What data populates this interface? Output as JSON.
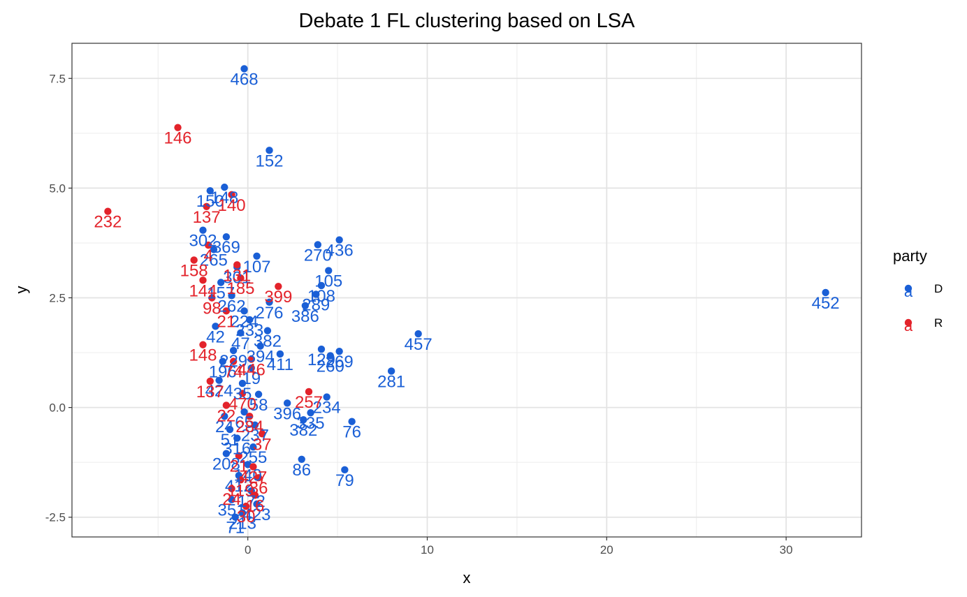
{
  "chart_data": {
    "type": "scatter",
    "title": "Debate 1 FL clustering based on LSA",
    "xlabel": "x",
    "ylabel": "y",
    "xlim": [
      -9.8,
      34.2
    ],
    "ylim": [
      -2.95,
      8.3
    ],
    "x_ticks": [
      0,
      10,
      20,
      30
    ],
    "x_tick_labels": [
      "0",
      "10",
      "20",
      "30"
    ],
    "y_ticks": [
      -2.5,
      0.0,
      2.5,
      5.0,
      7.5
    ],
    "y_tick_labels": [
      "-2.5",
      "0.0",
      "2.5",
      "5.0",
      "7.5"
    ],
    "grid": true,
    "legend": {
      "title": "party",
      "position": "right",
      "key_glyph": "a",
      "entries": [
        {
          "label": "D",
          "color": "#1a5fd6"
        },
        {
          "label": "R",
          "color": "#e3232b"
        }
      ]
    },
    "series": [
      {
        "name": "D",
        "color": "#1a5fd6",
        "points": [
          {
            "x": -0.2,
            "y": 7.72,
            "label": "468"
          },
          {
            "x": 1.2,
            "y": 5.86,
            "label": "152"
          },
          {
            "x": -2.1,
            "y": 4.94,
            "label": "150"
          },
          {
            "x": -1.3,
            "y": 5.02,
            "label": "148"
          },
          {
            "x": -2.5,
            "y": 4.04,
            "label": "302"
          },
          {
            "x": -1.2,
            "y": 3.89,
            "label": "369"
          },
          {
            "x": -1.9,
            "y": 3.6,
            "label": "265"
          },
          {
            "x": 0.5,
            "y": 3.45,
            "label": "107"
          },
          {
            "x": -0.6,
            "y": 3.2,
            "label": "301"
          },
          {
            "x": 3.9,
            "y": 3.71,
            "label": "270"
          },
          {
            "x": 5.1,
            "y": 3.82,
            "label": "436"
          },
          {
            "x": 4.5,
            "y": 3.12,
            "label": "105"
          },
          {
            "x": 4.1,
            "y": 2.78,
            "label": "108"
          },
          {
            "x": -1.5,
            "y": 2.85,
            "label": "157"
          },
          {
            "x": 3.8,
            "y": 2.58,
            "label": "289"
          },
          {
            "x": 3.2,
            "y": 2.32,
            "label": "386"
          },
          {
            "x": 1.2,
            "y": 2.4,
            "label": "276"
          },
          {
            "x": -0.2,
            "y": 2.2,
            "label": "224"
          },
          {
            "x": 32.2,
            "y": 2.62,
            "label": "452"
          },
          {
            "x": 9.5,
            "y": 1.68,
            "label": "457"
          },
          {
            "x": -1.8,
            "y": 1.85,
            "label": "42"
          },
          {
            "x": 1.1,
            "y": 1.75,
            "label": "382"
          },
          {
            "x": 0.7,
            "y": 1.4,
            "label": "394"
          },
          {
            "x": -0.8,
            "y": 1.3,
            "label": "229"
          },
          {
            "x": 4.1,
            "y": 1.33,
            "label": "129"
          },
          {
            "x": 5.1,
            "y": 1.28,
            "label": "269"
          },
          {
            "x": 4.6,
            "y": 1.18,
            "label": "260"
          },
          {
            "x": 1.8,
            "y": 1.22,
            "label": "411"
          },
          {
            "x": -1.4,
            "y": 1.05,
            "label": "196"
          },
          {
            "x": 8.0,
            "y": 0.83,
            "label": "281"
          },
          {
            "x": -1.6,
            "y": 0.62,
            "label": "424"
          },
          {
            "x": -0.3,
            "y": 0.55,
            "label": "35"
          },
          {
            "x": 2.2,
            "y": 0.1,
            "label": "396"
          },
          {
            "x": 4.4,
            "y": 0.24,
            "label": "234"
          },
          {
            "x": 3.5,
            "y": -0.12,
            "label": "335"
          },
          {
            "x": 3.1,
            "y": -0.28,
            "label": "382"
          },
          {
            "x": 5.8,
            "y": -0.32,
            "label": "76"
          },
          {
            "x": -1.3,
            "y": -0.2,
            "label": "24"
          },
          {
            "x": 0.4,
            "y": -0.4,
            "label": "237"
          },
          {
            "x": -0.6,
            "y": -0.7,
            "label": "316"
          },
          {
            "x": 0.3,
            "y": -0.9,
            "label": "255"
          },
          {
            "x": -1.2,
            "y": -1.05,
            "label": "208"
          },
          {
            "x": 3.0,
            "y": -1.18,
            "label": "86"
          },
          {
            "x": 5.4,
            "y": -1.42,
            "label": "79"
          },
          {
            "x": -0.5,
            "y": -1.55,
            "label": "412"
          },
          {
            "x": 0.2,
            "y": -1.9,
            "label": "172"
          },
          {
            "x": -0.9,
            "y": -2.1,
            "label": "351"
          },
          {
            "x": 0.5,
            "y": -2.2,
            "label": "423"
          },
          {
            "x": -0.3,
            "y": -2.4,
            "label": "213"
          },
          {
            "x": -0.7,
            "y": -2.5,
            "label": "71"
          },
          {
            "x": 0.0,
            "y": -1.3,
            "label": "140"
          },
          {
            "x": -1.0,
            "y": -0.5,
            "label": "51"
          },
          {
            "x": 0.6,
            "y": 0.3,
            "label": "58"
          },
          {
            "x": -0.4,
            "y": 1.7,
            "label": "47"
          },
          {
            "x": 0.1,
            "y": 2.0,
            "label": "233"
          },
          {
            "x": -0.9,
            "y": 2.55,
            "label": "262"
          },
          {
            "x": 0.2,
            "y": 0.9,
            "label": "19"
          },
          {
            "x": -0.2,
            "y": -0.1,
            "label": "65"
          }
        ]
      },
      {
        "name": "R",
        "color": "#e3232b",
        "points": [
          {
            "x": -3.9,
            "y": 6.38,
            "label": "146"
          },
          {
            "x": -7.8,
            "y": 4.47,
            "label": "232"
          },
          {
            "x": -2.3,
            "y": 4.58,
            "label": "137"
          },
          {
            "x": -0.9,
            "y": 4.85,
            "label": "140"
          },
          {
            "x": -2.2,
            "y": 3.7,
            "label": "4"
          },
          {
            "x": -3.0,
            "y": 3.36,
            "label": "158"
          },
          {
            "x": -2.5,
            "y": 2.9,
            "label": "144"
          },
          {
            "x": -0.4,
            "y": 2.95,
            "label": "185"
          },
          {
            "x": -0.6,
            "y": 3.25,
            "label": "131"
          },
          {
            "x": 1.7,
            "y": 2.76,
            "label": "399"
          },
          {
            "x": -2.0,
            "y": 2.5,
            "label": "98"
          },
          {
            "x": -1.2,
            "y": 2.2,
            "label": "21"
          },
          {
            "x": -2.5,
            "y": 1.43,
            "label": "148"
          },
          {
            "x": -0.8,
            "y": 1.05,
            "label": "74"
          },
          {
            "x": 0.2,
            "y": 1.1,
            "label": "446"
          },
          {
            "x": -2.1,
            "y": 0.6,
            "label": "137"
          },
          {
            "x": -0.3,
            "y": 0.32,
            "label": "470"
          },
          {
            "x": 3.4,
            "y": 0.36,
            "label": "257"
          },
          {
            "x": -1.2,
            "y": 0.05,
            "label": "22"
          },
          {
            "x": 0.1,
            "y": -0.2,
            "label": "284"
          },
          {
            "x": 0.8,
            "y": -0.6,
            "label": "37"
          },
          {
            "x": -0.5,
            "y": -1.1,
            "label": "21"
          },
          {
            "x": 0.3,
            "y": -1.35,
            "label": "427"
          },
          {
            "x": -0.4,
            "y": -1.65,
            "label": "119"
          },
          {
            "x": 0.6,
            "y": -1.6,
            "label": "36"
          },
          {
            "x": -0.9,
            "y": -1.85,
            "label": "24"
          },
          {
            "x": 0.4,
            "y": -2.0,
            "label": "16"
          },
          {
            "x": -0.1,
            "y": -2.25,
            "label": "30"
          }
        ]
      }
    ]
  }
}
